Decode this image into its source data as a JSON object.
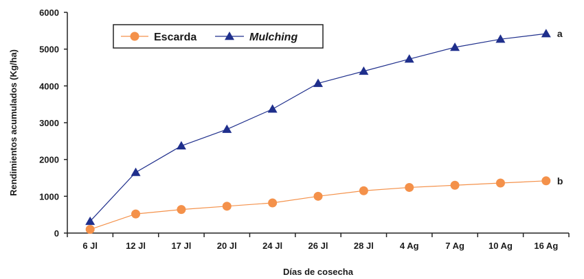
{
  "chart_data": {
    "type": "line",
    "xlabel": "Días de cosecha",
    "ylabel": "Rendimientos acumulados (Kg/ha)",
    "categories": [
      "6 Jl",
      "12 Jl",
      "17 Jl",
      "20 Jl",
      "24 Jl",
      "26 Jl",
      "28 Jl",
      "4 Ag",
      "7 Ag",
      "10 Ag",
      "16 Ag"
    ],
    "ylim": [
      0,
      6000
    ],
    "yticks": [
      0,
      1000,
      2000,
      3000,
      4000,
      5000,
      6000
    ],
    "grid": false,
    "legend_position": "top-left",
    "series": [
      {
        "name": "Escarda",
        "marker": "circle",
        "color": "#f4914a",
        "end_label": "b",
        "values": [
          100,
          520,
          640,
          730,
          820,
          1000,
          1150,
          1240,
          1300,
          1360,
          1420
        ]
      },
      {
        "name": "Mulching",
        "marker": "triangle",
        "color": "#1f2f8c",
        "end_label": "a",
        "values": [
          320,
          1650,
          2370,
          2820,
          3370,
          4070,
          4400,
          4730,
          5050,
          5270,
          5420
        ]
      }
    ]
  }
}
